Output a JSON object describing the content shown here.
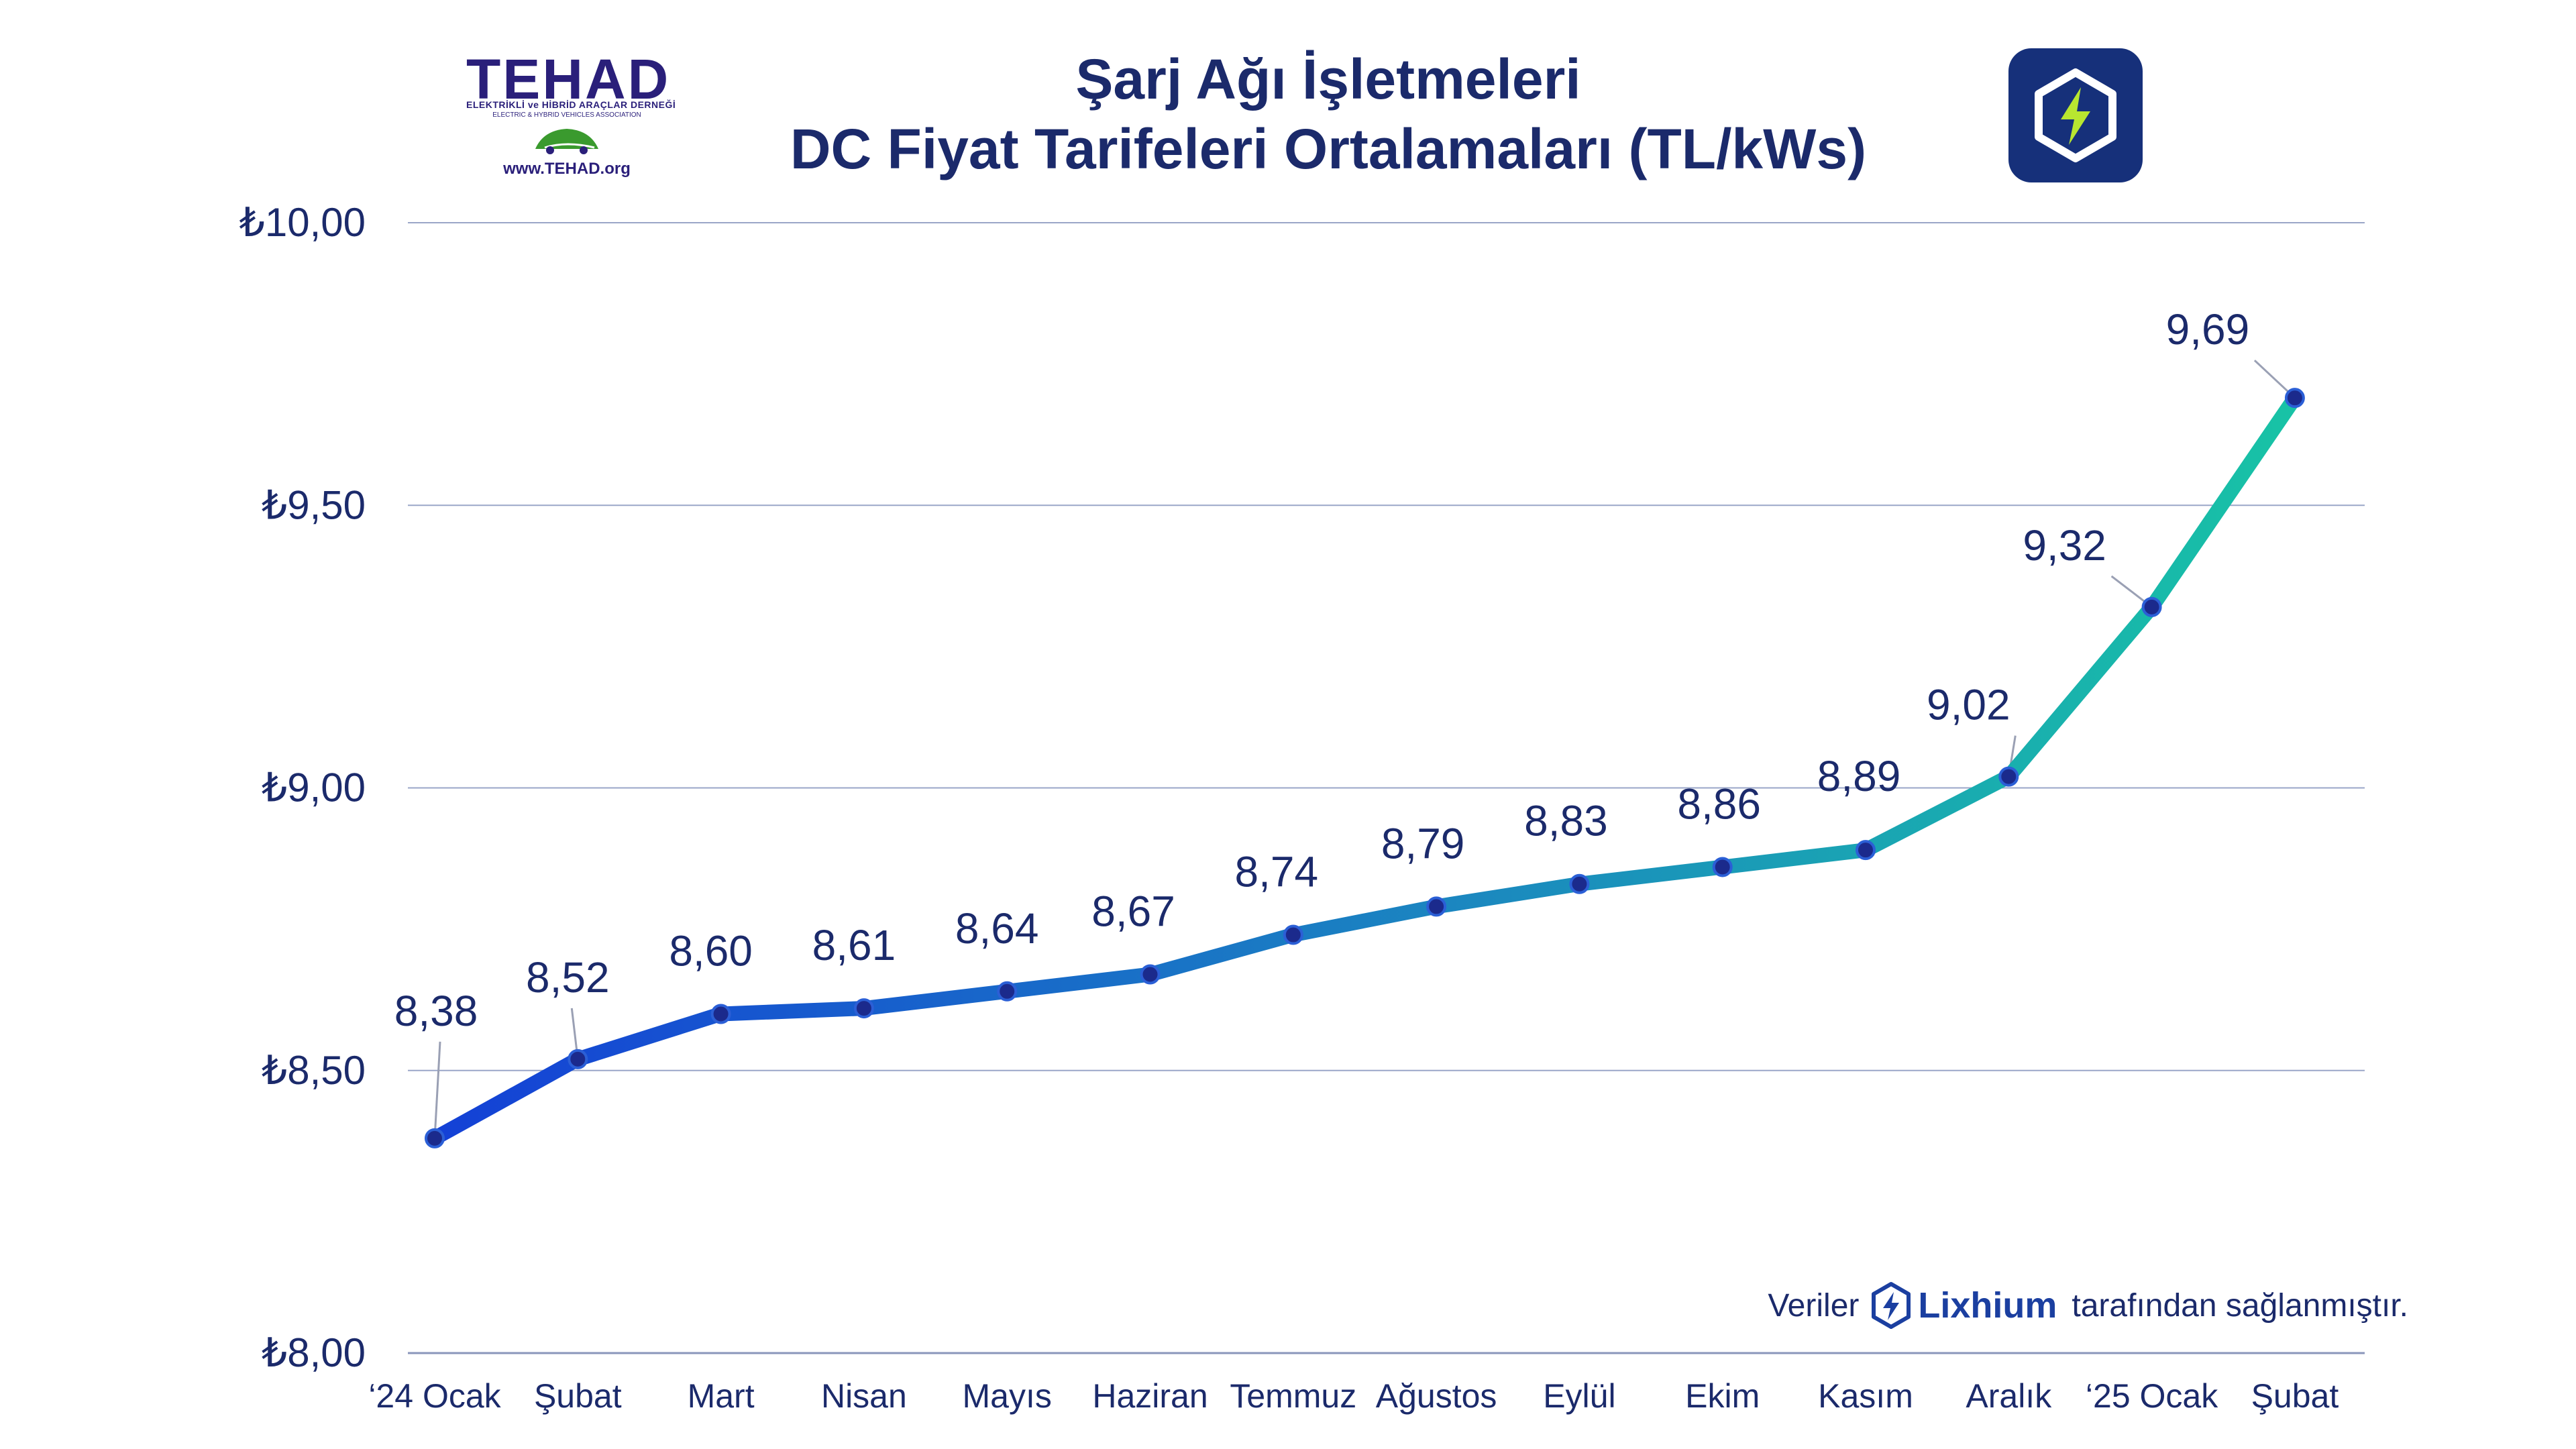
{
  "title": {
    "line1": "Şarj Ağı İşletmeleri",
    "line2": "DC Fiyat Tarifeleri Ortalamaları (TL/kWs)"
  },
  "logo": {
    "name": "TEHAD",
    "subtitle_tr": "ELEKTRİKLİ ve HİBRİD ARAÇLAR DERNEĞİ",
    "subtitle_en": "ELECTRIC & HYBRID VEHICLES ASSOCIATION",
    "url": "www.TEHAD.org"
  },
  "app_icon": "lightning-hexagon-icon",
  "credit": {
    "prefix": "Veriler",
    "brand": "Lixhium",
    "suffix": "tarafından sağlanmıştır."
  },
  "colors": {
    "title": "#1b2a6b",
    "line_start": "#1440d6",
    "line_end": "#18c2a6",
    "gridline": "#9aa6c8",
    "marker": "#1b2a8c",
    "app_icon_bg": "#16307a",
    "bolt": "#b8e630"
  },
  "chart_data": {
    "type": "line",
    "title": "Şarj Ağı İşletmeleri DC Fiyat Tarifeleri Ortalamaları (TL/kWs)",
    "categories": [
      "‘24 Ocak",
      "Şubat",
      "Mart",
      "Nisan",
      "Mayıs",
      "Haziran",
      "Temmuz",
      "Ağustos",
      "Eylül",
      "Ekim",
      "Kasım",
      "Aralık",
      "‘25 Ocak",
      "Şubat"
    ],
    "series": [
      {
        "values": [
          8.38,
          8.52,
          8.6,
          8.61,
          8.64,
          8.67,
          8.74,
          8.79,
          8.83,
          8.86,
          8.89,
          9.02,
          9.32,
          9.69
        ],
        "labels": [
          "8,38",
          "8,52",
          "8,60",
          "8,61",
          "8,64",
          "8,67",
          "8,74",
          "8,79",
          "8,83",
          "8,86",
          "8,89",
          "9,02",
          "9,32",
          "9,69"
        ]
      }
    ],
    "ylim": [
      8.0,
      10.0
    ],
    "yticks": [
      8.0,
      8.5,
      9.0,
      9.5,
      10.0
    ],
    "ytick_labels": [
      "₺8,00",
      "₺8,50",
      "₺9,00",
      "₺9,50",
      "₺10,00"
    ],
    "xlabel": "",
    "ylabel": "",
    "grid": true,
    "legend": "none"
  }
}
